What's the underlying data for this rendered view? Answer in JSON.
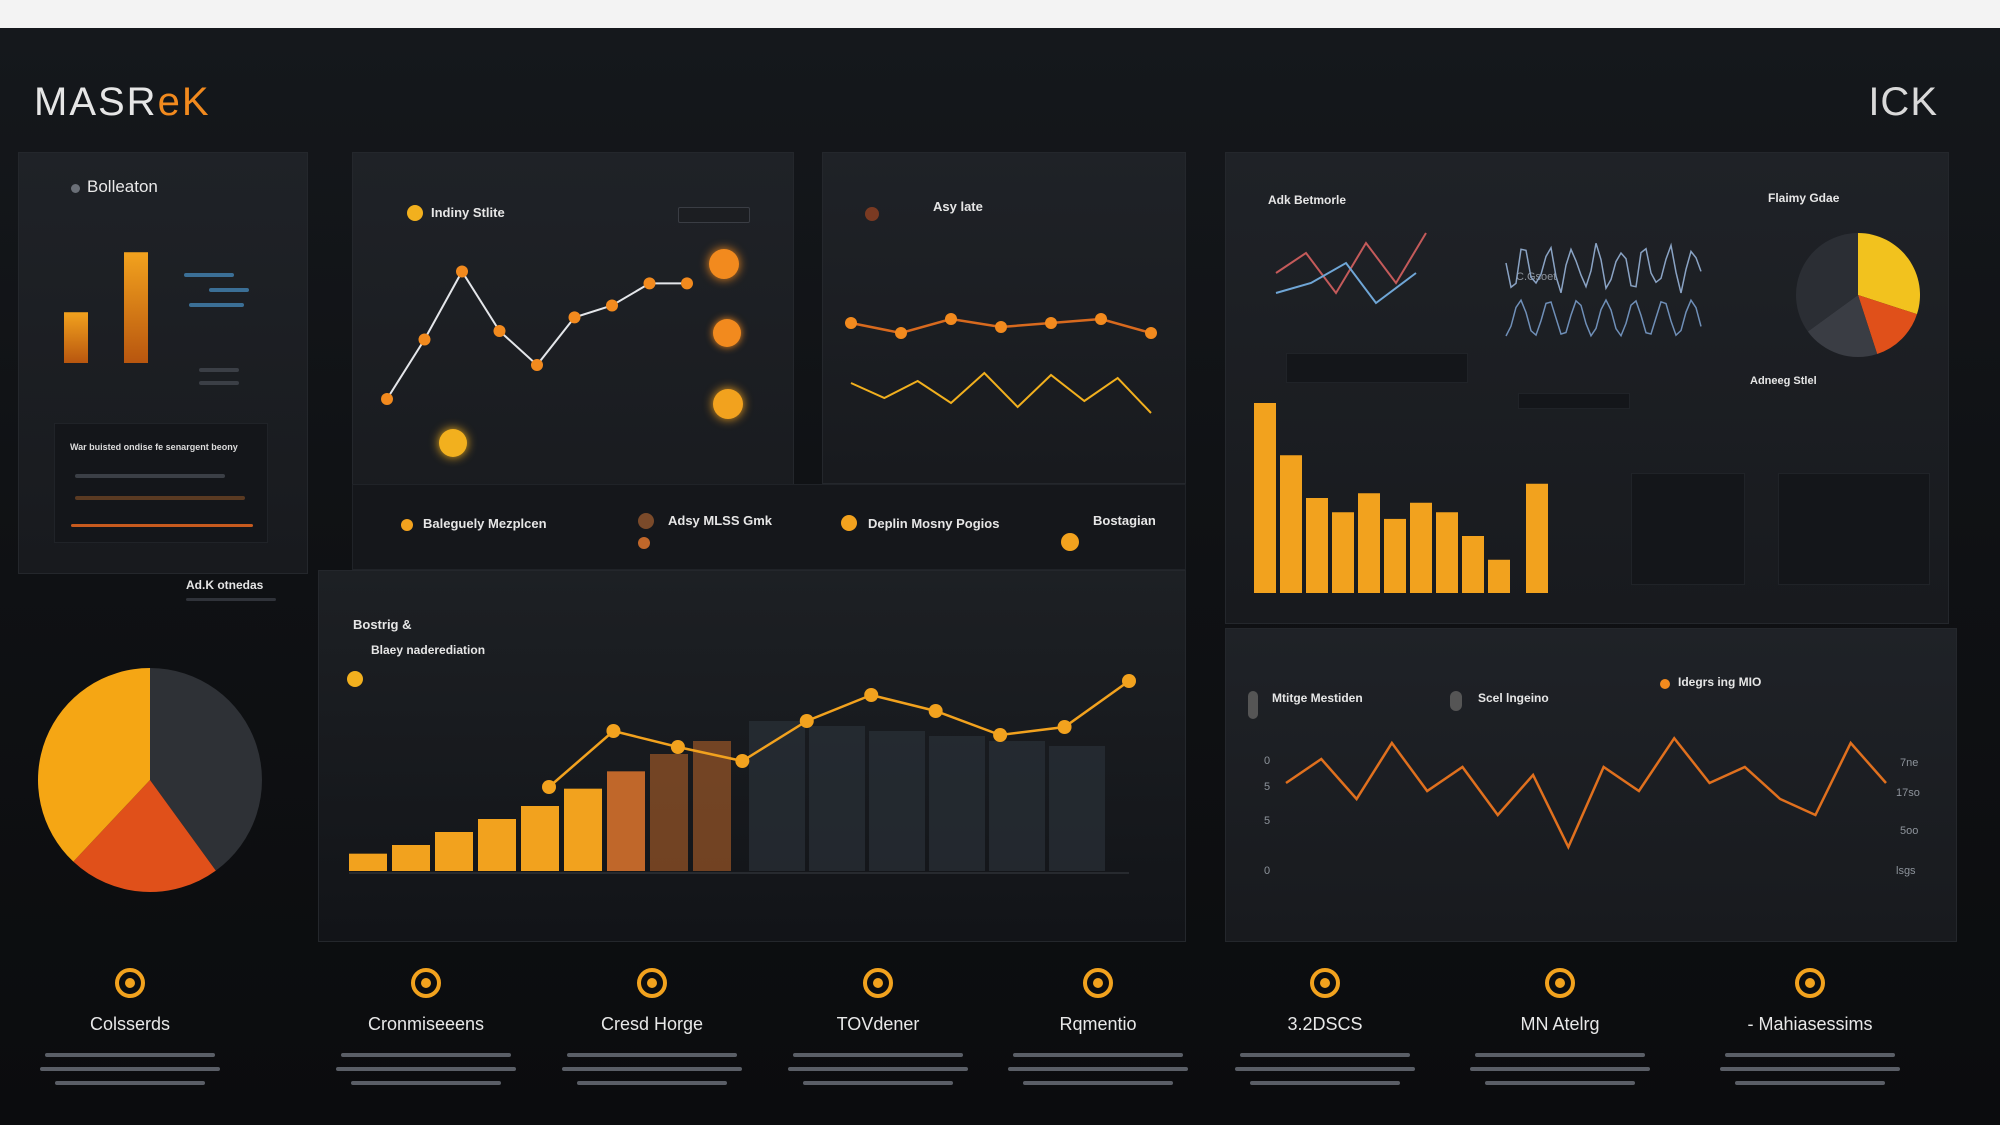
{
  "header": {
    "logo_left": "MASR",
    "logo_accent": "eK",
    "logo_right": "ICK"
  },
  "panels": {
    "left_top": {
      "title": "Bolleaton",
      "subtitle": "War buisted ondise fe senargent beony"
    },
    "left_mid": {
      "title": "Ad.K otnedas"
    },
    "chart1": {
      "title": "Indiny Stlite"
    },
    "chart2": {
      "title": "Asy late"
    },
    "legend_row": [
      {
        "label": "Baleguely Mezplcen",
        "color": "#f2a21e"
      },
      {
        "label": "Adsy MLSS Gmk",
        "color": "#c0672a"
      },
      {
        "label": "Deplin Mosny Pogios",
        "color": "#f2a21e"
      },
      {
        "label": "Bostagian",
        "color": "#f2a21e"
      }
    ],
    "big_chart": {
      "title": "Bostrig &",
      "subtitle": "Blaey naderediation"
    },
    "right_top": {
      "title": "Adk Betmorle",
      "title2": "Flaimy Gdae",
      "title3": "Adneeg Stlel",
      "sub_small": "C.Gsoet"
    },
    "right_bottom": {
      "legends": [
        {
          "label": "Mtitge Mestiden",
          "color": "#777"
        },
        {
          "label": "Scel lngeino",
          "color": "#777"
        },
        {
          "label": "Idegrs ing MIO",
          "color": "#f28a1e"
        }
      ],
      "y_ticks": [
        "0",
        "5",
        "5",
        "0"
      ],
      "y_ticks_right": [
        "7ne",
        "17so",
        "5oo",
        "lsgs"
      ]
    }
  },
  "features": [
    {
      "label": "Colsserds",
      "icon": "gear-icon"
    },
    {
      "label": "Cronmiseeens",
      "icon": "face-icon"
    },
    {
      "label": "Cresd Horge",
      "icon": "globe-icon"
    },
    {
      "label": "TOVdener",
      "icon": "shield-icon"
    },
    {
      "label": "Rqmentio",
      "icon": "target-icon"
    },
    {
      "label": "3.2DSCS",
      "icon": "people-icon"
    },
    {
      "label": "MN Atelrg",
      "icon": "house-icon"
    },
    {
      "label": "- Mahiasessims",
      "icon": "refresh-icon"
    }
  ],
  "chart_data": [
    {
      "type": "bar",
      "title": "",
      "values": [
        55,
        120
      ]
    },
    {
      "type": "line",
      "title": "",
      "values": [
        20,
        55,
        95,
        60,
        40,
        68,
        75,
        88,
        88
      ]
    },
    {
      "type": "line",
      "title": "",
      "values": [
        60,
        55,
        62,
        58,
        60,
        62,
        55
      ]
    },
    {
      "type": "bar",
      "title": "",
      "values": [
        8,
        12,
        18,
        24,
        30,
        38,
        46,
        54,
        60
      ]
    },
    {
      "type": "line",
      "title": "",
      "values": [
        42,
        70,
        62,
        55,
        75,
        88,
        80,
        68,
        72,
        95
      ]
    },
    {
      "type": "bar",
      "title": "",
      "values": [
        200,
        145,
        100,
        85,
        105,
        78,
        95,
        85,
        60,
        35,
        115
      ]
    },
    {
      "type": "pie",
      "title": "",
      "values": [
        40,
        22,
        38
      ]
    },
    {
      "type": "pie",
      "title": "",
      "values": [
        30,
        15,
        20,
        35
      ]
    }
  ]
}
